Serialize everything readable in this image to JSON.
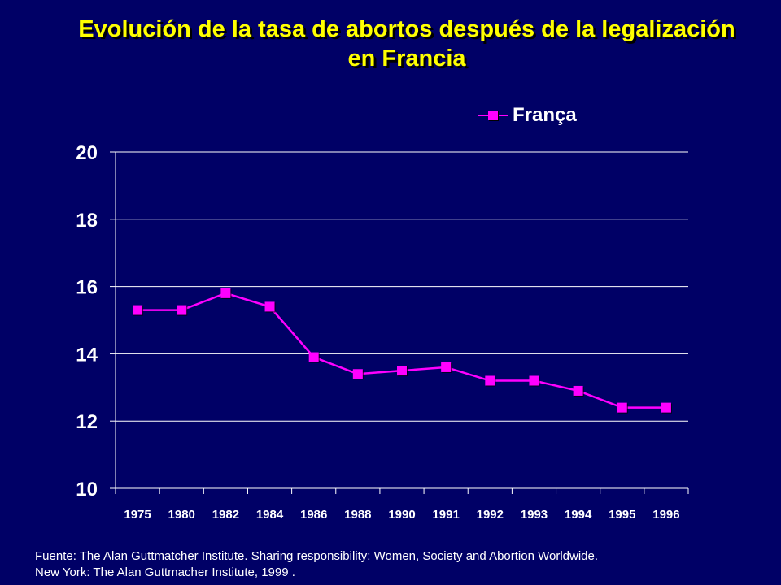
{
  "slide": {
    "title_line1": "Evolución de la tasa de abortos después de la legalización",
    "title_line2": "en Francia",
    "source_line1": "Fuente: The Alan Guttmatcher Institute. Sharing responsibility: Women, Society and Abortion Worldwide.",
    "source_line2": "New York: The Alan Guttmacher Institute, 1999 ."
  },
  "colors": {
    "background": "#000066",
    "title": "#FFFF00",
    "series": "#FF00FF",
    "axis": "#FFFFFF"
  },
  "chart_data": {
    "type": "line",
    "title": "Evolución de la tasa de abortos después de la legalización en Francia",
    "xlabel": "",
    "ylabel": "",
    "categories": [
      "1975",
      "1980",
      "1982",
      "1984",
      "1986",
      "1988",
      "1990",
      "1991",
      "1992",
      "1993",
      "1994",
      "1995",
      "1996"
    ],
    "series": [
      {
        "name": "França",
        "values": [
          15.3,
          15.3,
          15.8,
          15.4,
          13.9,
          13.4,
          13.5,
          13.6,
          13.2,
          13.2,
          12.9,
          12.4,
          12.4
        ]
      }
    ],
    "ylim": [
      10,
      20
    ],
    "yticks": [
      10,
      12,
      14,
      16,
      18,
      20
    ],
    "grid": "horizontal",
    "legend": "top-right"
  }
}
